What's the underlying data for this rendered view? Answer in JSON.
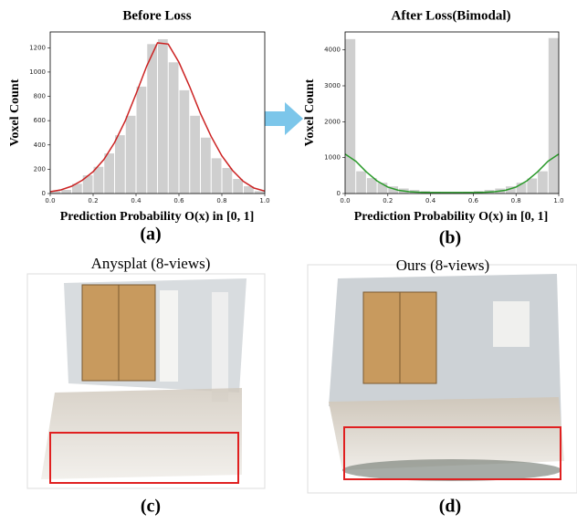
{
  "chart_data": [
    {
      "type": "histogram",
      "title": "Before Loss",
      "xlabel": "Prediction Probability O(x) in [0, 1]",
      "ylabel": "Voxel Count",
      "bins": [
        0,
        0.05,
        0.1,
        0.15,
        0.2,
        0.25,
        0.3,
        0.35,
        0.4,
        0.45,
        0.5,
        0.55,
        0.6,
        0.65,
        0.7,
        0.75,
        0.8,
        0.85,
        0.9,
        0.95,
        1.0
      ],
      "values": [
        20,
        30,
        80,
        150,
        220,
        330,
        480,
        640,
        880,
        1230,
        1270,
        1080,
        850,
        640,
        460,
        290,
        210,
        120,
        60,
        20
      ],
      "color": "#cfcfcf",
      "curve": {
        "color": "#cc2222",
        "x": [
          0,
          0.05,
          0.1,
          0.15,
          0.2,
          0.25,
          0.3,
          0.35,
          0.4,
          0.45,
          0.5,
          0.55,
          0.6,
          0.65,
          0.7,
          0.75,
          0.8,
          0.85,
          0.9,
          0.95,
          1.0
        ],
        "values": [
          15,
          30,
          60,
          110,
          180,
          280,
          420,
          600,
          820,
          1050,
          1240,
          1230,
          1080,
          880,
          660,
          470,
          310,
          190,
          100,
          45,
          20
        ]
      },
      "xlim": [
        0,
        1.0
      ],
      "ylim": [
        0,
        1330
      ],
      "xticks": [
        {
          "value": 0,
          "label": "0.0"
        },
        0.2,
        0.4,
        0.6,
        0.8,
        {
          "value": 1,
          "label": "1.0"
        }
      ],
      "yticks": [
        0,
        200,
        400,
        600,
        800,
        1000,
        1200
      ]
    },
    {
      "type": "histogram",
      "title": "After Loss(Bimodal)",
      "xlabel": "Prediction Probability O(x) in [0, 1]",
      "ylabel": "Voxel Count",
      "bins": [
        0,
        0.05,
        0.1,
        0.15,
        0.2,
        0.25,
        0.3,
        0.35,
        0.4,
        0.45,
        0.5,
        0.55,
        0.6,
        0.65,
        0.7,
        0.75,
        0.8,
        0.85,
        0.9,
        0.95,
        1.0
      ],
      "values": [
        4300,
        620,
        430,
        300,
        200,
        140,
        100,
        70,
        50,
        40,
        40,
        50,
        70,
        100,
        140,
        200,
        300,
        420,
        620,
        4330
      ],
      "color": "#cfcfcf",
      "curve": {
        "color": "#2a9a2a",
        "x": [
          0,
          0.05,
          0.1,
          0.15,
          0.2,
          0.25,
          0.3,
          0.35,
          0.4,
          0.45,
          0.5,
          0.55,
          0.6,
          0.65,
          0.7,
          0.75,
          0.8,
          0.85,
          0.9,
          0.95,
          1.0
        ],
        "values": [
          1100,
          900,
          600,
          350,
          180,
          90,
          50,
          35,
          30,
          30,
          30,
          30,
          30,
          35,
          50,
          90,
          180,
          350,
          600,
          900,
          1100
        ]
      },
      "xlim": [
        0,
        1.0
      ],
      "ylim": [
        0,
        4500
      ],
      "xticks": [
        {
          "value": 0,
          "label": "0.0"
        },
        0.2,
        0.4,
        0.6,
        0.8,
        {
          "value": 1,
          "label": "1.0"
        }
      ],
      "yticks": [
        0,
        1000,
        2000,
        3000,
        4000
      ]
    }
  ],
  "figure": {
    "labels": [
      "(a)",
      "(b)",
      "(c)",
      "(d)"
    ],
    "image_titles": [
      "Anysplat (8-views)",
      "Ours (8-views)"
    ]
  }
}
